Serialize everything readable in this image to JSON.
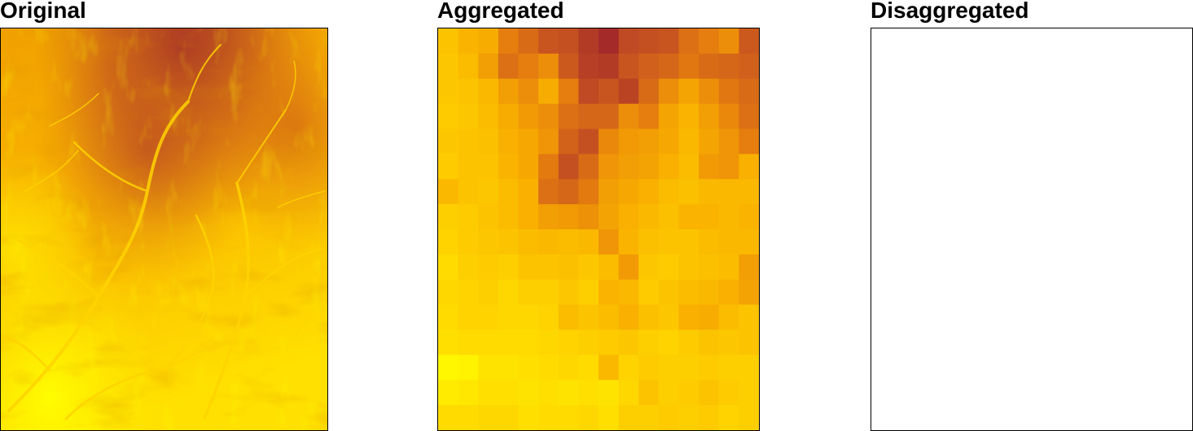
{
  "panels": {
    "original_title": "Original",
    "aggregated_title": "Aggregated",
    "disaggregated_title": "Disaggregated"
  },
  "chart_data": [
    {
      "type": "heatmap",
      "title": "Original",
      "colormap": [
        "#ffff00",
        "#ffd700",
        "#f9b000",
        "#e8830c",
        "#c85420",
        "#a42a2a"
      ],
      "note_values": "continuous raster, values normalized 0 (yellow) to 1 (dark red)"
    },
    {
      "type": "heatmap",
      "title": "Aggregated",
      "colormap": [
        "#ffff00",
        "#ffd700",
        "#f9b000",
        "#e8830c",
        "#c85420",
        "#a42a2a"
      ],
      "cols": 16,
      "rows": 16,
      "grid": [
        [
          0.3,
          0.38,
          0.42,
          0.62,
          0.7,
          0.8,
          0.82,
          0.92,
          1.0,
          0.85,
          0.82,
          0.8,
          0.68,
          0.62,
          0.55,
          0.78
        ],
        [
          0.28,
          0.34,
          0.48,
          0.68,
          0.62,
          0.55,
          0.78,
          0.9,
          0.92,
          0.8,
          0.75,
          0.72,
          0.65,
          0.7,
          0.72,
          0.75
        ],
        [
          0.28,
          0.3,
          0.36,
          0.48,
          0.55,
          0.42,
          0.62,
          0.85,
          0.8,
          0.88,
          0.7,
          0.55,
          0.45,
          0.55,
          0.65,
          0.7
        ],
        [
          0.26,
          0.28,
          0.34,
          0.42,
          0.5,
          0.55,
          0.68,
          0.72,
          0.72,
          0.55,
          0.62,
          0.45,
          0.38,
          0.48,
          0.58,
          0.68
        ],
        [
          0.28,
          0.3,
          0.32,
          0.4,
          0.44,
          0.52,
          0.74,
          0.82,
          0.58,
          0.5,
          0.48,
          0.44,
          0.36,
          0.45,
          0.52,
          0.62
        ],
        [
          0.26,
          0.3,
          0.3,
          0.38,
          0.44,
          0.64,
          0.82,
          0.7,
          0.52,
          0.48,
          0.46,
          0.4,
          0.34,
          0.5,
          0.52,
          0.4
        ],
        [
          0.36,
          0.3,
          0.28,
          0.34,
          0.4,
          0.68,
          0.72,
          0.64,
          0.48,
          0.44,
          0.4,
          0.34,
          0.32,
          0.36,
          0.36,
          0.36
        ],
        [
          0.24,
          0.26,
          0.3,
          0.34,
          0.4,
          0.48,
          0.5,
          0.54,
          0.46,
          0.4,
          0.36,
          0.32,
          0.38,
          0.38,
          0.36,
          0.38
        ],
        [
          0.22,
          0.26,
          0.28,
          0.3,
          0.34,
          0.36,
          0.34,
          0.36,
          0.52,
          0.38,
          0.32,
          0.3,
          0.3,
          0.34,
          0.36,
          0.36
        ],
        [
          0.18,
          0.24,
          0.26,
          0.24,
          0.3,
          0.3,
          0.32,
          0.28,
          0.34,
          0.5,
          0.28,
          0.26,
          0.3,
          0.32,
          0.34,
          0.48
        ],
        [
          0.2,
          0.22,
          0.24,
          0.2,
          0.24,
          0.24,
          0.28,
          0.24,
          0.38,
          0.36,
          0.26,
          0.3,
          0.34,
          0.36,
          0.4,
          0.46
        ],
        [
          0.18,
          0.22,
          0.22,
          0.2,
          0.2,
          0.22,
          0.34,
          0.3,
          0.34,
          0.4,
          0.32,
          0.28,
          0.4,
          0.42,
          0.34,
          0.3
        ],
        [
          0.16,
          0.18,
          0.18,
          0.18,
          0.18,
          0.2,
          0.22,
          0.24,
          0.26,
          0.28,
          0.24,
          0.22,
          0.26,
          0.3,
          0.28,
          0.3
        ],
        [
          0.04,
          0.06,
          0.14,
          0.14,
          0.16,
          0.18,
          0.2,
          0.18,
          0.36,
          0.22,
          0.26,
          0.24,
          0.24,
          0.26,
          0.24,
          0.24
        ],
        [
          0.1,
          0.12,
          0.16,
          0.16,
          0.14,
          0.16,
          0.14,
          0.16,
          0.14,
          0.2,
          0.3,
          0.24,
          0.26,
          0.3,
          0.26,
          0.24
        ],
        [
          0.18,
          0.18,
          0.2,
          0.2,
          0.16,
          0.18,
          0.18,
          0.2,
          0.16,
          0.24,
          0.24,
          0.26,
          0.24,
          0.26,
          0.22,
          0.24
        ]
      ]
    },
    {
      "type": "heatmap",
      "title": "Disaggregated",
      "grid": []
    }
  ]
}
